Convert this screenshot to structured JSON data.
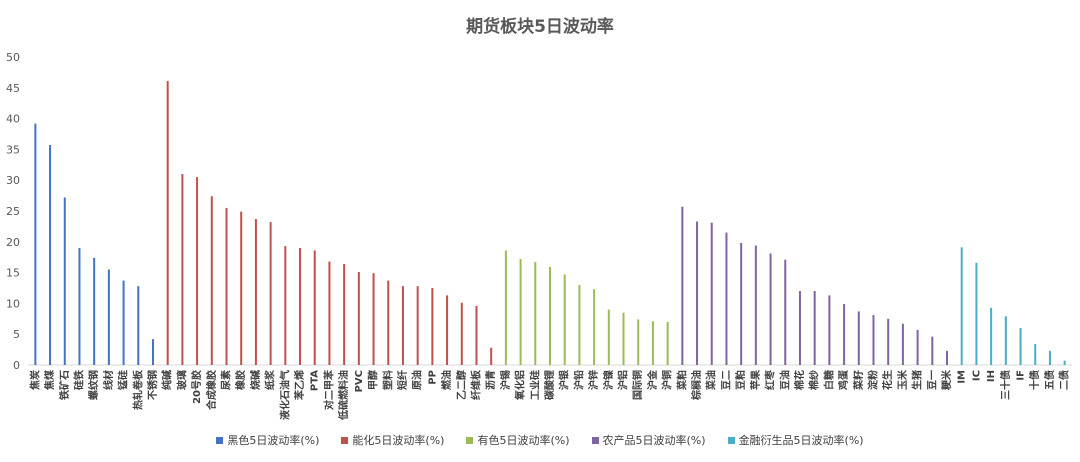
{
  "chart_data": {
    "type": "bar",
    "title": "期货板块5日波动率",
    "ylim": [
      0,
      50
    ],
    "yticks": [
      0,
      5,
      10,
      15,
      20,
      25,
      30,
      35,
      40,
      45,
      50
    ],
    "grid": false,
    "legend_position": "bottom",
    "series": [
      {
        "name": "黑色5日波动率(%)",
        "color": "#4472C4",
        "categories": [
          "焦炭",
          "焦煤",
          "铁矿石",
          "硅铁",
          "螺纹钢",
          "线材",
          "锰硅",
          "热轧卷板",
          "不锈钢"
        ],
        "values": [
          39.2,
          35.7,
          27.2,
          19.0,
          17.4,
          15.5,
          13.7,
          12.8,
          4.2
        ]
      },
      {
        "name": "能化5日波动率(%)",
        "color": "#C0504D",
        "categories": [
          "纯碱",
          "玻璃",
          "20号胶",
          "合成橡胶",
          "尿素",
          "橡胶",
          "烧碱",
          "纸浆",
          "液化石油气",
          "苯乙烯",
          "PTA",
          "对二甲苯",
          "低硫燃料油",
          "PVC",
          "甲醇",
          "塑料",
          "短纤",
          "原油",
          "PP",
          "燃油",
          "乙二醇",
          "纤维板",
          "沥青"
        ],
        "values": [
          46.1,
          31.0,
          30.5,
          27.4,
          25.5,
          24.9,
          23.7,
          23.2,
          19.3,
          19.0,
          18.6,
          16.8,
          16.4,
          15.1,
          14.9,
          13.7,
          12.8,
          12.8,
          12.5,
          11.3,
          10.1,
          9.6,
          2.8
        ]
      },
      {
        "name": "有色5日波动率(%)",
        "color": "#9BBB59",
        "categories": [
          "沪锡",
          "氧化铝",
          "工业硅",
          "碳酸锂",
          "沪银",
          "沪铅",
          "沪锌",
          "沪镍",
          "沪铝",
          "国际铜",
          "沪金",
          "沪铜"
        ],
        "values": [
          18.6,
          17.2,
          16.7,
          15.9,
          14.7,
          13.0,
          12.3,
          9.0,
          8.5,
          7.4,
          7.1,
          7.0
        ]
      },
      {
        "name": "农产品5日波动率(%)",
        "color": "#8064A2",
        "categories": [
          "菜粕",
          "棕榈油",
          "菜油",
          "豆二",
          "豆粕",
          "苹果",
          "红枣",
          "豆油",
          "棉花",
          "棉纱",
          "白糖",
          "鸡蛋",
          "菜籽",
          "淀粉",
          "花生",
          "玉米",
          "生猪",
          "豆一",
          "粳米"
        ],
        "values": [
          25.7,
          23.3,
          23.1,
          21.5,
          19.8,
          19.4,
          18.1,
          17.1,
          12.0,
          12.0,
          11.3,
          9.9,
          8.7,
          8.1,
          7.5,
          6.7,
          5.7,
          4.6,
          2.3
        ]
      },
      {
        "name": "金融衍生品5日波动率(%)",
        "color": "#4BACC6",
        "categories": [
          "IM",
          "IC",
          "IH",
          "三十债",
          "IF",
          "十债",
          "五债",
          "二债"
        ],
        "values": [
          19.1,
          16.6,
          9.3,
          7.9,
          6.0,
          3.4,
          2.3,
          0.7
        ]
      }
    ]
  }
}
